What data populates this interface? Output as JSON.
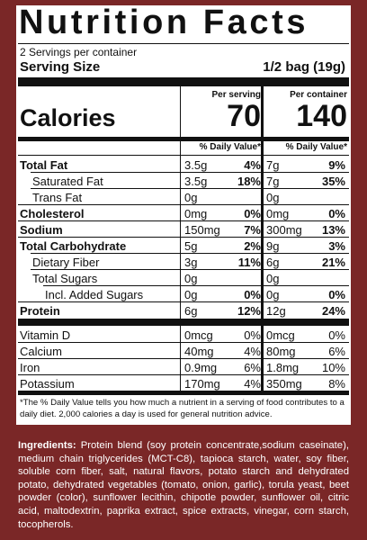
{
  "title": "Nutrition Facts",
  "servings": "2 Servings per container",
  "serving_size_label": "Serving Size",
  "serving_size": "1/2 bag (19g)",
  "calories_label": "Calories",
  "columns": [
    {
      "header": "Per serving",
      "calories": 70,
      "dv_header": "% Daily Value*"
    },
    {
      "header": "Per container",
      "calories": 140,
      "dv_header": "% Daily Value*"
    }
  ],
  "nutrients": [
    {
      "name": "Total Fat",
      "bold": true,
      "indent": 0,
      "values": [
        [
          "3.5g",
          "4%"
        ],
        [
          "7g",
          "9%"
        ]
      ]
    },
    {
      "name": "Saturated Fat",
      "bold": false,
      "indent": 1,
      "values": [
        [
          "3.5g",
          "18%"
        ],
        [
          "7g",
          "35%"
        ]
      ]
    },
    {
      "name": "Trans Fat",
      "bold": false,
      "indent": 1,
      "values": [
        [
          "0g",
          null
        ],
        [
          "0g",
          null
        ]
      ]
    },
    {
      "name": "Cholesterol",
      "bold": true,
      "indent": 0,
      "values": [
        [
          "0mg",
          "0%"
        ],
        [
          "0mg",
          "0%"
        ]
      ]
    },
    {
      "name": "Sodium",
      "bold": true,
      "indent": 0,
      "values": [
        [
          "150mg",
          "7%"
        ],
        [
          "300mg",
          "13%"
        ]
      ]
    },
    {
      "name": "Total Carbohydrate",
      "bold": true,
      "indent": 0,
      "values": [
        [
          "5g",
          "2%"
        ],
        [
          "9g",
          "3%"
        ]
      ]
    },
    {
      "name": "Dietary Fiber",
      "bold": false,
      "indent": 1,
      "values": [
        [
          "3g",
          "11%"
        ],
        [
          "6g",
          "21%"
        ]
      ]
    },
    {
      "name": "Total Sugars",
      "bold": false,
      "indent": 1,
      "values": [
        [
          "0g",
          null
        ],
        [
          "0g",
          null
        ]
      ]
    },
    {
      "name": "Incl. Added Sugars",
      "bold": false,
      "indent": 2,
      "values": [
        [
          "0g",
          "0%"
        ],
        [
          "0g",
          "0%"
        ]
      ]
    },
    {
      "name": "Protein",
      "bold": true,
      "indent": 0,
      "values": [
        [
          "6g",
          "12%"
        ],
        [
          "12g",
          "24%"
        ]
      ]
    }
  ],
  "vitamins": [
    {
      "name": "Vitamin D",
      "values": [
        [
          "0mcg",
          "0%"
        ],
        [
          "0mcg",
          "0%"
        ]
      ]
    },
    {
      "name": "Calcium",
      "values": [
        [
          "40mg",
          "4%"
        ],
        [
          "80mg",
          "6%"
        ]
      ]
    },
    {
      "name": "Iron",
      "values": [
        [
          "0.9mg",
          "6%"
        ],
        [
          "1.8mg",
          "10%"
        ]
      ]
    },
    {
      "name": "Potassium",
      "values": [
        [
          "170mg",
          "4%"
        ],
        [
          "350mg",
          "8%"
        ]
      ]
    }
  ],
  "footnote": "*The % Daily Value tells you how much a nutrient in a serving of food contributes to a daily diet. 2,000 calories a day is used for general nutrition advice.",
  "ingredients_label": "Ingredients:",
  "ingredients": "Protein blend (soy protein concentrate,sodium caseinate), medium chain triglycerides (MCT-C8), tapioca starch, water, soy fiber, soluble corn fiber, salt, natural flavors, potato starch and dehydrated potato, dehydrated vegetables (tomato, onion, garlic), torula yeast, beet powder (color), sunflower lecithin, chipotle powder, sunflower oil, citric acid, maltodextrin, paprika extract, spice extracts, vinegar, corn starch, tocopherols."
}
